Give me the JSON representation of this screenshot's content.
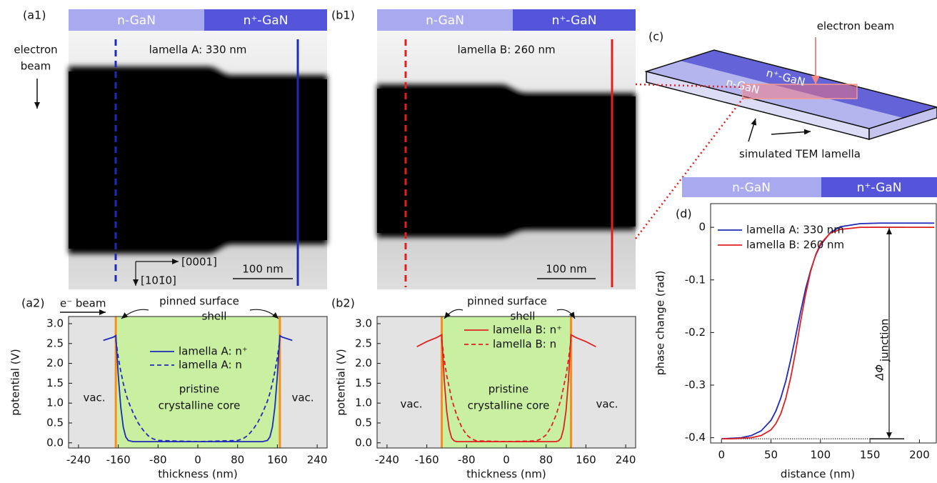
{
  "panels": {
    "a1": {
      "label": "(a1)",
      "header": [
        "n-GaN",
        "n⁺-GaN"
      ],
      "side_label": [
        "electron",
        "beam"
      ],
      "lamella": "lamella A: 330 nm",
      "axis_h": "[0001]",
      "axis_v": "[101̄0]",
      "scale_bar": "100 nm"
    },
    "b1": {
      "label": "(b1)",
      "header": [
        "n-GaN",
        "n⁺-GaN"
      ],
      "lamella": "lamella B: 260 nm",
      "scale_bar": "100 nm"
    },
    "c": {
      "label": "(c)",
      "beam": "electron beam",
      "top_n_plus": "n⁺-GaN",
      "top_n": "n-GaN",
      "lamella": "simulated TEM lamella"
    }
  },
  "chart_data": [
    {
      "type": "line",
      "label": "(a2)",
      "beam": "e⁻ beam",
      "shell": [
        "pinned surface",
        "shell"
      ],
      "vacuum": [
        "vac.",
        "vac."
      ],
      "core": [
        "pristine",
        "crystalline core"
      ],
      "xlabel": "thickness (nm)",
      "ylabel": "potential (V)",
      "xlim": [
        -260,
        260
      ],
      "ylim": [
        -0.13,
        3.18
      ],
      "xticks": [
        -240,
        -160,
        -80,
        0,
        80,
        160,
        240
      ],
      "yticks": [
        {
          "value": 0,
          "label": "0.0"
        },
        {
          "value": 0.5,
          "label": "0.5"
        },
        {
          "value": 1,
          "label": "1.0"
        },
        {
          "value": 1.5,
          "label": "1.5"
        },
        {
          "value": 2,
          "label": "2.0"
        },
        {
          "value": 2.5,
          "label": "2.5"
        },
        {
          "value": 3,
          "label": "3.0"
        }
      ],
      "shell_edges": [
        -165,
        165
      ],
      "x": [
        -190,
        -180,
        -170,
        -165,
        -160,
        -155,
        -150,
        -145,
        -140,
        -130,
        -120,
        -110,
        -100,
        -90,
        -80,
        0,
        80,
        90,
        100,
        110,
        120,
        130,
        140,
        145,
        150,
        155,
        160,
        165,
        170,
        180,
        190
      ],
      "series": [
        {
          "name": "lamella A: n⁺",
          "color": "#1f2ab8",
          "dash": false,
          "values": [
            2.58,
            2.62,
            2.66,
            2.7,
            1.7,
            0.9,
            0.4,
            0.15,
            0.06,
            0.03,
            0.03,
            0.03,
            0.03,
            0.03,
            0.03,
            0.03,
            0.03,
            0.03,
            0.03,
            0.03,
            0.03,
            0.03,
            0.06,
            0.15,
            0.4,
            0.9,
            1.7,
            2.7,
            2.66,
            2.62,
            2.58
          ]
        },
        {
          "name": "lamella A: n",
          "color": "#1f2ab8",
          "dash": true,
          "values": [
            null,
            null,
            null,
            2.6,
            2.15,
            1.8,
            1.5,
            1.25,
            1.05,
            0.75,
            0.5,
            0.32,
            0.18,
            0.1,
            0.06,
            0.03,
            0.06,
            0.1,
            0.18,
            0.32,
            0.5,
            0.75,
            1.05,
            1.25,
            1.5,
            1.8,
            2.15,
            2.6,
            null,
            null,
            null
          ]
        }
      ]
    },
    {
      "type": "line",
      "label": "(b2)",
      "shell": [
        "pinned surface",
        "shell"
      ],
      "vacuum": [
        "vac.",
        "vac."
      ],
      "core": [
        "pristine",
        "crystalline core"
      ],
      "xlabel": "thickness (nm)",
      "ylabel": "potential (V)",
      "xlim": [
        -260,
        260
      ],
      "ylim": [
        -0.13,
        3.18
      ],
      "xticks": [
        -240,
        -160,
        -80,
        0,
        80,
        160,
        240
      ],
      "yticks": [
        {
          "value": 0,
          "label": "0.0"
        },
        {
          "value": 0.5,
          "label": "0.5"
        },
        {
          "value": 1,
          "label": "1.0"
        },
        {
          "value": 1.5,
          "label": "1.5"
        },
        {
          "value": 2,
          "label": "2.0"
        },
        {
          "value": 2.5,
          "label": "2.5"
        },
        {
          "value": 3,
          "label": "3.0"
        }
      ],
      "shell_edges": [
        -130,
        130
      ],
      "x": [
        -180,
        -160,
        -140,
        -130,
        -125,
        -120,
        -115,
        -110,
        -105,
        -100,
        -90,
        -80,
        -70,
        -60,
        0,
        60,
        70,
        80,
        90,
        100,
        105,
        110,
        115,
        120,
        125,
        130,
        140,
        160,
        180
      ],
      "series": [
        {
          "name": "lamella B: n⁺",
          "color": "#e02020",
          "dash": false,
          "values": [
            2.42,
            2.55,
            2.65,
            2.72,
            1.6,
            0.8,
            0.35,
            0.12,
            0.05,
            0.03,
            0.03,
            0.03,
            0.03,
            0.03,
            0.03,
            0.03,
            0.03,
            0.03,
            0.03,
            0.03,
            0.05,
            0.12,
            0.35,
            0.8,
            1.6,
            2.72,
            2.65,
            2.55,
            2.42
          ]
        },
        {
          "name": "lamella B: n",
          "color": "#e02020",
          "dash": true,
          "values": [
            null,
            null,
            null,
            2.6,
            2.1,
            1.7,
            1.4,
            1.1,
            0.9,
            0.7,
            0.4,
            0.2,
            0.1,
            0.05,
            0.03,
            0.05,
            0.1,
            0.2,
            0.4,
            0.7,
            0.9,
            1.1,
            1.4,
            1.7,
            2.1,
            2.6,
            null,
            null,
            null
          ]
        }
      ]
    },
    {
      "type": "line",
      "label": "(d)",
      "header": [
        "n-GaN",
        "n⁺-GaN"
      ],
      "xlabel": "distance (nm)",
      "ylabel": "phase change (rad)",
      "annotation": {
        "symbol": "ΔΦ",
        "subscript": "junction"
      },
      "delta_range": [
        -0.402,
        0.0
      ],
      "xlim": [
        -11,
        217
      ],
      "ylim": [
        -0.41,
        0.045
      ],
      "xticks": [
        0,
        50,
        100,
        150,
        200
      ],
      "yticks": [
        0,
        -0.1,
        -0.2,
        -0.3,
        -0.4
      ],
      "x": [
        0,
        10,
        20,
        30,
        40,
        50,
        55,
        60,
        65,
        70,
        75,
        80,
        85,
        90,
        95,
        100,
        110,
        120,
        140,
        160,
        180,
        200,
        215
      ],
      "series": [
        {
          "name": "lamella A: 330 nm",
          "color": "#1f2ab8",
          "dash": false,
          "values": [
            -0.402,
            -0.401,
            -0.4,
            -0.396,
            -0.387,
            -0.367,
            -0.349,
            -0.324,
            -0.292,
            -0.251,
            -0.206,
            -0.16,
            -0.117,
            -0.082,
            -0.054,
            -0.034,
            -0.01,
            0.001,
            0.007,
            0.008,
            0.008,
            0.008,
            0.008
          ]
        },
        {
          "name": "lamella B: 260 nm",
          "color": "#e02020",
          "dash": false,
          "values": [
            -0.402,
            -0.402,
            -0.401,
            -0.4,
            -0.396,
            -0.385,
            -0.373,
            -0.354,
            -0.325,
            -0.285,
            -0.235,
            -0.178,
            -0.127,
            -0.084,
            -0.053,
            -0.031,
            -0.011,
            -0.004,
            0.0,
            0.0,
            0.0,
            0.0,
            0.0
          ]
        }
      ]
    }
  ]
}
